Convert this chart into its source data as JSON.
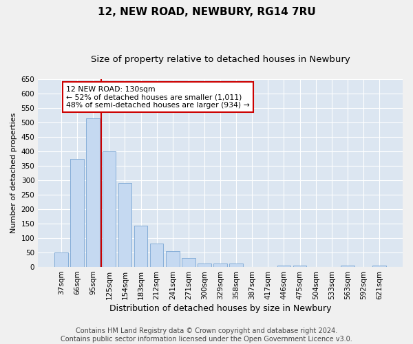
{
  "title": "12, NEW ROAD, NEWBURY, RG14 7RU",
  "subtitle": "Size of property relative to detached houses in Newbury",
  "xlabel": "Distribution of detached houses by size in Newbury",
  "ylabel": "Number of detached properties",
  "categories": [
    "37sqm",
    "66sqm",
    "95sqm",
    "125sqm",
    "154sqm",
    "183sqm",
    "212sqm",
    "241sqm",
    "271sqm",
    "300sqm",
    "329sqm",
    "358sqm",
    "387sqm",
    "417sqm",
    "446sqm",
    "475sqm",
    "504sqm",
    "533sqm",
    "563sqm",
    "592sqm",
    "621sqm"
  ],
  "values": [
    50,
    375,
    515,
    400,
    291,
    143,
    82,
    55,
    30,
    12,
    12,
    11,
    0,
    0,
    5,
    5,
    0,
    0,
    5,
    0,
    5
  ],
  "bar_color": "#c5d9f1",
  "bar_edge_color": "#7aa6d4",
  "background_color": "#dce6f1",
  "grid_color": "#ffffff",
  "vline_color": "#cc0000",
  "annotation_text": "12 NEW ROAD: 130sqm\n← 52% of detached houses are smaller (1,011)\n48% of semi-detached houses are larger (934) →",
  "annotation_box_color": "#ffffff",
  "annotation_box_edge": "#cc0000",
  "ylim": [
    0,
    650
  ],
  "yticks": [
    0,
    50,
    100,
    150,
    200,
    250,
    300,
    350,
    400,
    450,
    500,
    550,
    600,
    650
  ],
  "footer_line1": "Contains HM Land Registry data © Crown copyright and database right 2024.",
  "footer_line2": "Contains public sector information licensed under the Open Government Licence v3.0.",
  "title_fontsize": 11,
  "subtitle_fontsize": 9.5,
  "xlabel_fontsize": 9,
  "ylabel_fontsize": 8,
  "footer_fontsize": 7,
  "tick_fontsize": 7.5,
  "ytick_fontsize": 7.5
}
